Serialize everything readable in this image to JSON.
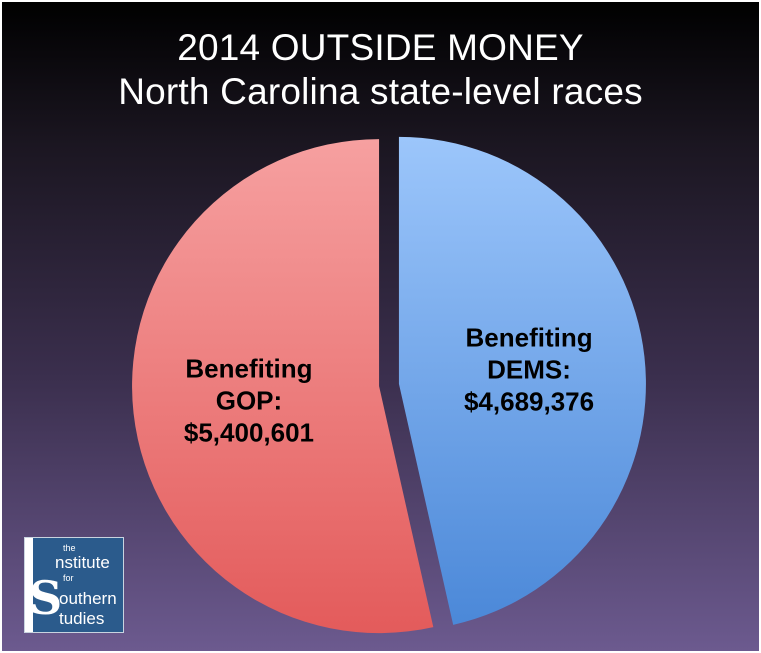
{
  "chart_data": {
    "type": "pie",
    "title": "2014 OUTSIDE MONEY",
    "subtitle": "North Carolina state-level races",
    "slices": [
      {
        "label_lines": [
          "Benefiting",
          "GOP:",
          "$5,400,601"
        ],
        "value": 5400601,
        "color": "#e35b5b",
        "color_light": "#f6a0a0"
      },
      {
        "label_lines": [
          "Benefiting",
          "DEMS:",
          "$4,689,376"
        ],
        "value": 4689376,
        "color": "#4b88d8",
        "color_light": "#9cc6fb"
      }
    ],
    "exploded": true,
    "legend": "none"
  },
  "logo": {
    "line1": "the",
    "line2": "nstitute",
    "line3": "for",
    "line4": "outhern",
    "line5": "tudies"
  },
  "colors": {
    "background_top": "#000000",
    "background_bottom": "#6c5a8f",
    "title": "#ffffff",
    "logo_bg": "#2b5b8c"
  }
}
